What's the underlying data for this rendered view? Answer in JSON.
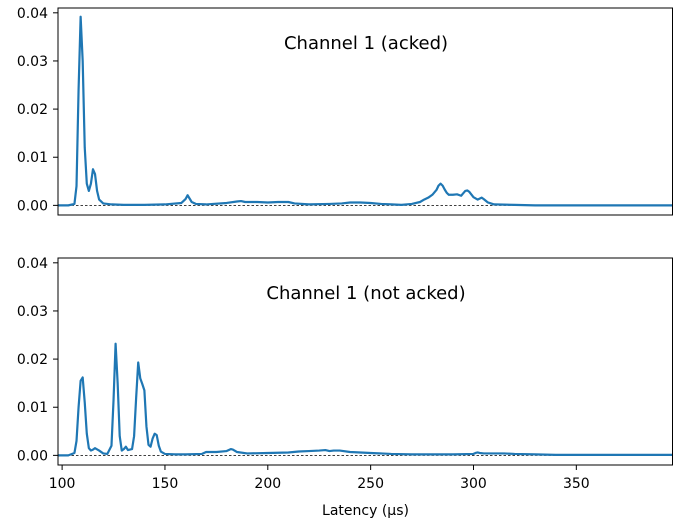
{
  "chart_data": [
    {
      "type": "line",
      "title": "Channel 1 (acked)",
      "xlabel": "",
      "ylabel": "",
      "xlim": [
        98,
        397
      ],
      "ylim": [
        -0.002,
        0.041
      ],
      "xticks": [],
      "yticks": [
        0.0,
        0.01,
        0.02,
        0.03,
        0.04
      ],
      "ytick_labels": [
        "0.00",
        "0.01",
        "0.02",
        "0.03",
        "0.04"
      ],
      "baseline": 0,
      "line_color": "#1f77b4",
      "series": [
        {
          "x": [
            98,
            103,
            106,
            107,
            108,
            109,
            110,
            111,
            112,
            113,
            114,
            115,
            116,
            117,
            118,
            120,
            124,
            130,
            140,
            150,
            158,
            160,
            161,
            162,
            163,
            165,
            170,
            180,
            185,
            187,
            189,
            192,
            195,
            200,
            205,
            210,
            213,
            220,
            230,
            236,
            240,
            245,
            250,
            255,
            260,
            265,
            270,
            274,
            276,
            278,
            280,
            282,
            283,
            284,
            285,
            286,
            287,
            288,
            290,
            292,
            294,
            295,
            296,
            297,
            298,
            300,
            302,
            303,
            304,
            305,
            307,
            310,
            320,
            330,
            340,
            350,
            360,
            380,
            397
          ],
          "y": [
            0,
            0,
            0.0003,
            0.004,
            0.024,
            0.0392,
            0.03,
            0.012,
            0.0045,
            0.003,
            0.0045,
            0.0075,
            0.0065,
            0.003,
            0.0012,
            0.0004,
            0.0002,
            0.0001,
            0.0001,
            0.0002,
            0.0005,
            0.0013,
            0.0021,
            0.0014,
            0.0007,
            0.0003,
            0.0002,
            0.0005,
            0.0008,
            0.0009,
            0.0007,
            0.0007,
            0.0007,
            0.0006,
            0.0007,
            0.0007,
            0.0004,
            0.0002,
            0.0003,
            0.0004,
            0.0006,
            0.0006,
            0.0005,
            0.0003,
            0.0002,
            0.0001,
            0.0003,
            0.0007,
            0.0012,
            0.0016,
            0.0022,
            0.0032,
            0.0041,
            0.0045,
            0.0041,
            0.0033,
            0.0026,
            0.0022,
            0.0022,
            0.0023,
            0.002,
            0.0025,
            0.003,
            0.0031,
            0.0028,
            0.0017,
            0.0012,
            0.0014,
            0.0016,
            0.0013,
            0.0006,
            0.0002,
            0.0001,
            0,
            0,
            0,
            0,
            0,
            0
          ]
        }
      ]
    },
    {
      "type": "line",
      "title": "Channel 1 (not acked)",
      "xlabel": "Latency (µs)",
      "ylabel": "",
      "xlim": [
        98,
        397
      ],
      "ylim": [
        -0.002,
        0.041
      ],
      "xticks": [
        100,
        150,
        200,
        250,
        300,
        350
      ],
      "xtick_labels": [
        "100",
        "150",
        "200",
        "250",
        "300",
        "350"
      ],
      "yticks": [
        0.0,
        0.01,
        0.02,
        0.03,
        0.04
      ],
      "ytick_labels": [
        "0.00",
        "0.01",
        "0.02",
        "0.03",
        "0.04"
      ],
      "baseline": 0,
      "line_color": "#1f77b4",
      "series": [
        {
          "x": [
            98,
            103,
            106,
            107,
            108,
            109,
            110,
            111,
            112,
            113,
            114,
            115,
            116,
            118,
            120,
            122,
            124,
            125,
            126,
            127,
            128,
            129,
            130,
            131,
            132,
            134,
            135,
            136,
            137,
            138,
            139,
            140,
            141,
            142,
            143,
            144,
            145,
            146,
            147,
            148,
            150,
            155,
            160,
            168,
            170,
            175,
            180,
            182,
            183,
            185,
            190,
            200,
            210,
            215,
            220,
            225,
            228,
            230,
            232,
            235,
            240,
            245,
            250,
            260,
            270,
            280,
            290,
            300,
            301,
            302,
            303,
            305,
            310,
            315,
            320,
            330,
            340,
            350,
            360,
            380,
            397
          ],
          "y": [
            0,
            0,
            0.0005,
            0.003,
            0.01,
            0.0155,
            0.0162,
            0.011,
            0.0045,
            0.0015,
            0.001,
            0.0012,
            0.0015,
            0.001,
            0.0004,
            0.0003,
            0.002,
            0.0115,
            0.0232,
            0.015,
            0.004,
            0.001,
            0.0013,
            0.0018,
            0.0011,
            0.0013,
            0.004,
            0.012,
            0.0193,
            0.016,
            0.0148,
            0.0135,
            0.006,
            0.0022,
            0.0018,
            0.0035,
            0.0045,
            0.0042,
            0.002,
            0.0008,
            0.0003,
            0.0002,
            0.0002,
            0.0003,
            0.0007,
            0.0007,
            0.0009,
            0.0013,
            0.0012,
            0.0007,
            0.0004,
            0.0005,
            0.0006,
            0.0008,
            0.0009,
            0.001,
            0.0011,
            0.0009,
            0.001,
            0.001,
            0.0007,
            0.0006,
            0.0005,
            0.0003,
            0.0002,
            0.0002,
            0.0002,
            0.0003,
            0.0005,
            0.0006,
            0.0005,
            0.0004,
            0.0004,
            0.0004,
            0.0003,
            0.0002,
            0.0001,
            0.0001,
            0.0001,
            0.0001,
            0.0001
          ]
        }
      ]
    }
  ]
}
